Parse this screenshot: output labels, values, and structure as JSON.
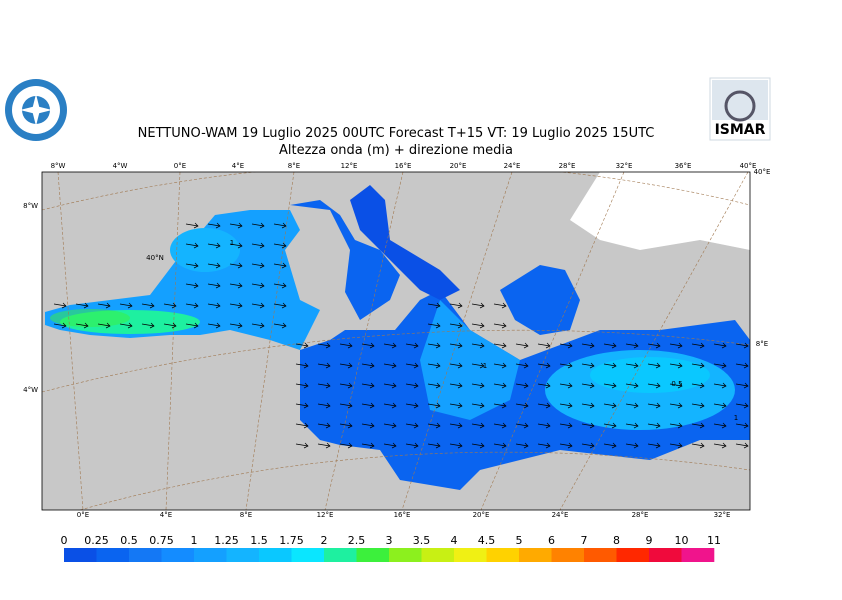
{
  "header": {
    "title": "NETTUNO-WAM  19  Luglio   2025 00UTC Forecast T+15 VT: 19  Luglio   2025 15UTC",
    "subtitle": "Altezza onda (m) + direzione media",
    "logo_right": "ISMAR"
  },
  "map": {
    "top_labels": [
      "8°W",
      "4°W",
      "0°E",
      "4°E",
      "8°E",
      "12°E",
      "16°E",
      "20°E",
      "24°E",
      "28°E",
      "32°E",
      "36°E",
      "40°E"
    ],
    "bottom_labels": [
      "0°E",
      "4°E",
      "8°E",
      "12°E",
      "16°E",
      "20°E",
      "24°E",
      "28°E",
      "32°E"
    ],
    "left_labels": [
      "8°W",
      "4°W"
    ],
    "right_labels": [
      "40°E",
      "8°E"
    ],
    "lat_label": "40°N",
    "contour_labels": [
      "1",
      "1",
      "0.5",
      "1"
    ]
  },
  "colorbar": {
    "levels": [
      0,
      0.25,
      0.5,
      0.75,
      1,
      1.25,
      1.5,
      1.75,
      2,
      2.5,
      3,
      3.5,
      4,
      4.5,
      5,
      6,
      7,
      8,
      9,
      10,
      11
    ],
    "colors": [
      "#0a50e6",
      "#0a64f0",
      "#1478f5",
      "#148cff",
      "#14a0ff",
      "#14b4ff",
      "#0ac8ff",
      "#0ae6ff",
      "#1ef0a0",
      "#3cf03c",
      "#8cf01e",
      "#c8f014",
      "#f0f014",
      "#ffd200",
      "#ffaa00",
      "#ff8200",
      "#ff5a00",
      "#ff2800",
      "#f00a3c",
      "#f0148c"
    ]
  }
}
